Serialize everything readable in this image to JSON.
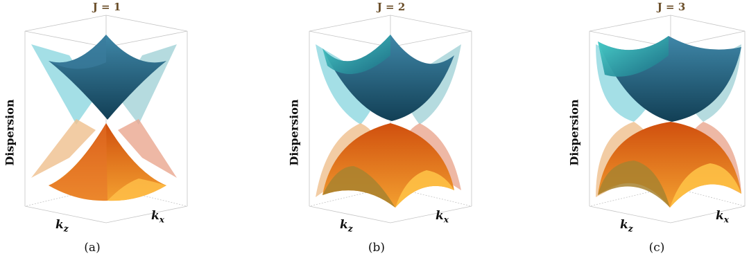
{
  "panels": [
    {
      "title": "J = 1",
      "caption": "(a)"
    },
    {
      "title": "J = 2",
      "caption": "(b)"
    },
    {
      "title": "J = 3",
      "caption": "(c)"
    }
  ],
  "axes": {
    "ylabel": "Dispersion",
    "kz_base": "k",
    "kz_sub": "z",
    "kx_base": "k",
    "kx_sub": "x"
  },
  "colors": {
    "upper_dark": "#1f5f7c",
    "upper_light": "#3fc9c8",
    "lower_dark": "#d25a12",
    "lower_light": "#f7b33c",
    "projection_cyan": "#86d4de",
    "projection_orange": "#f1b98f",
    "box": "#b8b8b8",
    "title": "#6b4f2a"
  }
}
